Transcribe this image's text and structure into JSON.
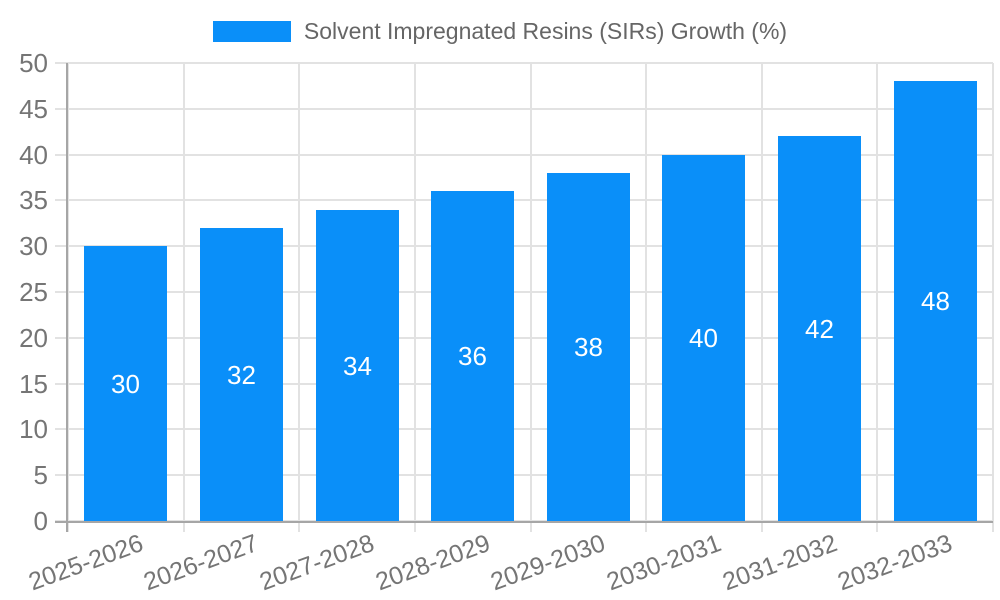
{
  "chart_data": {
    "type": "bar",
    "title": "Solvent Impregnated Resins (SIRs) Growth (%)",
    "legend": {
      "position": "top",
      "label": "Solvent Impregnated Resins (SIRs) Growth (%)"
    },
    "categories": [
      "2025-2026",
      "2026-2027",
      "2027-2028",
      "2028-2029",
      "2029-2030",
      "2030-2031",
      "2031-2032",
      "2032-2033"
    ],
    "values": [
      30,
      32,
      34,
      36,
      38,
      40,
      42,
      48
    ],
    "bar_value_labels": [
      "30",
      "32",
      "34",
      "36",
      "38",
      "40",
      "42",
      "48"
    ],
    "xlabel": "",
    "ylabel": "",
    "ylim": [
      0,
      50
    ],
    "y_ticks": [
      0,
      5,
      10,
      15,
      20,
      25,
      30,
      35,
      40,
      45,
      50
    ],
    "grid": true,
    "colors": {
      "bar": "#0a8ff9",
      "bar_value_text": "#ffffff",
      "axis_text": "#757575",
      "legend_text": "#666666",
      "grid_line": "#e2e2e2",
      "axis_line": "#a6a6a6",
      "background": "#ffffff"
    }
  }
}
